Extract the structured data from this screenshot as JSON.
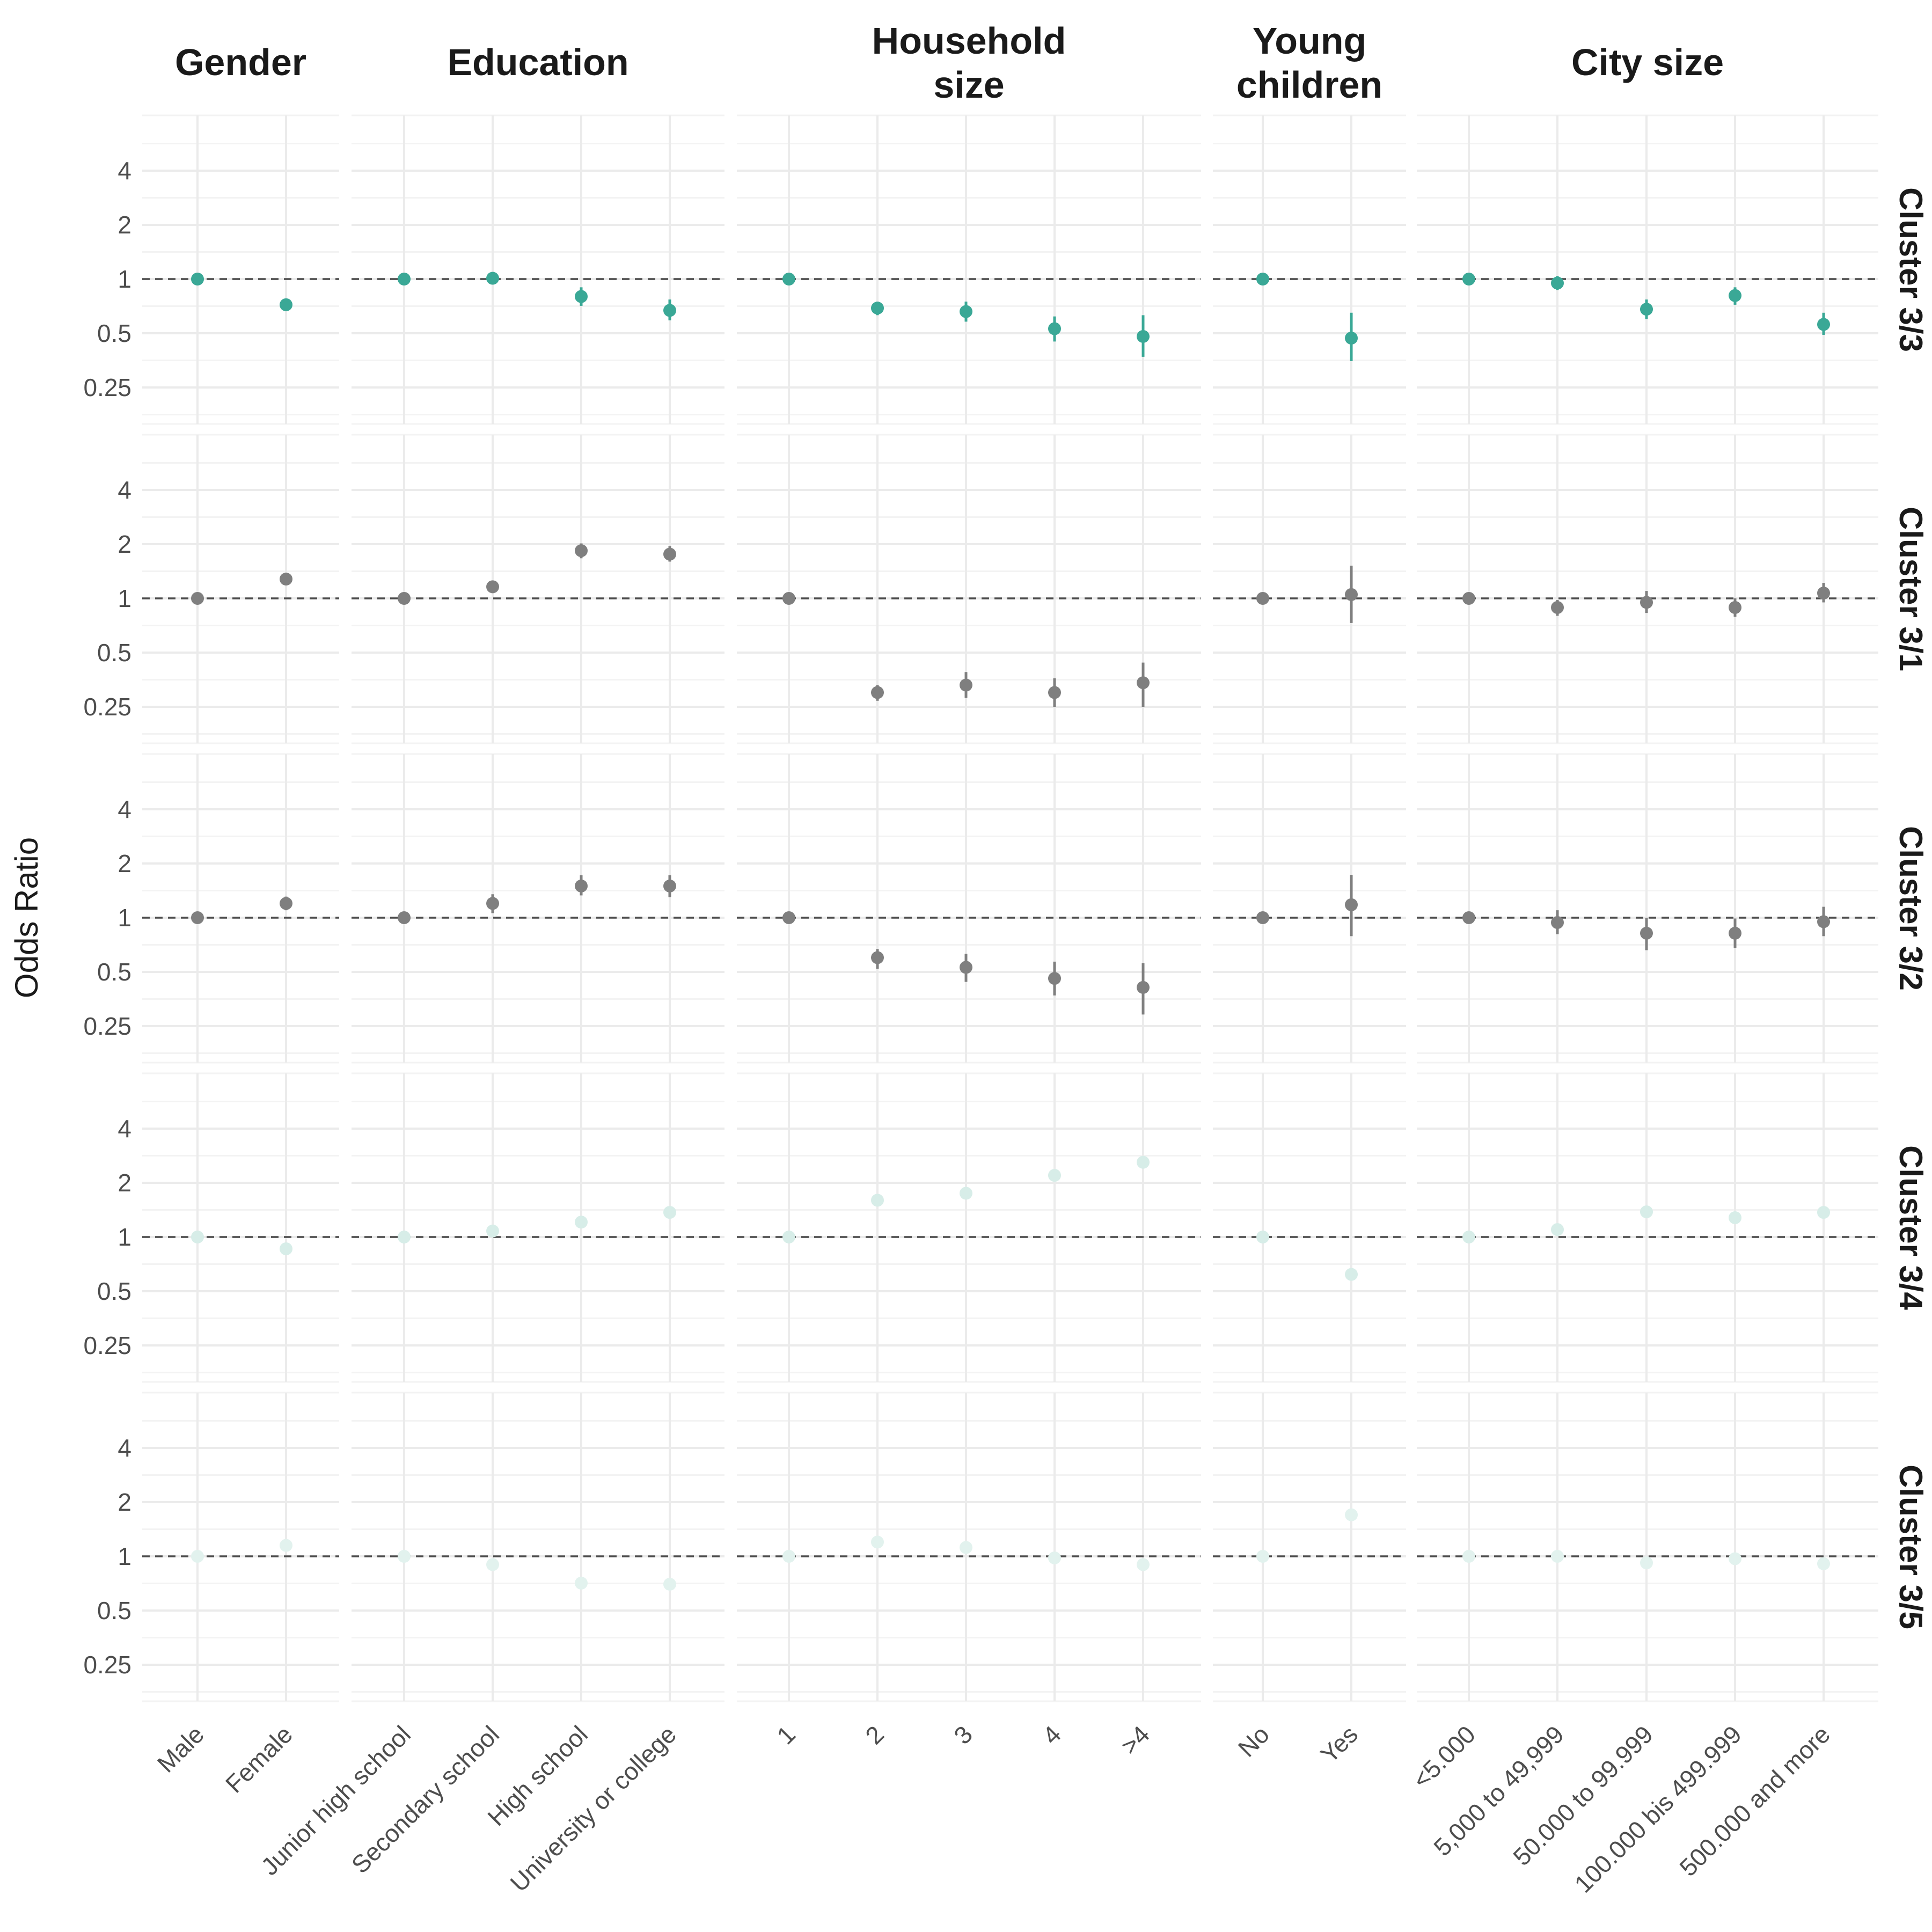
{
  "chart_data": {
    "type": "scatter",
    "ylabel": "Odds Ratio",
    "yscale": "log2",
    "yticks": [
      "0.25",
      "0.5",
      "1",
      "2",
      "4"
    ],
    "ytick_values": [
      0.25,
      0.5,
      1,
      2,
      4
    ],
    "reference_line": 1,
    "grid": true,
    "columns": [
      {
        "title_lines": [
          "Gender"
        ],
        "categories": [
          "Male",
          "Female"
        ]
      },
      {
        "title_lines": [
          "Education"
        ],
        "categories": [
          "Junior high school",
          "Secondary school",
          "High school",
          "University or college"
        ]
      },
      {
        "title_lines": [
          "Household",
          "size"
        ],
        "categories": [
          "1",
          "2",
          "3",
          "4",
          ">4"
        ]
      },
      {
        "title_lines": [
          "Young",
          "children"
        ],
        "categories": [
          "No",
          "Yes"
        ]
      },
      {
        "title_lines": [
          "City size"
        ],
        "categories": [
          "<5.000",
          "5,000 to 49,999",
          "50.000 to 99.999",
          "100.000 bis 499.999",
          "500.000 and more"
        ]
      }
    ],
    "rows": [
      {
        "title": "Cluster 3/3",
        "color": "#3aa896",
        "values": [
          [
            1.0,
            0.72
          ],
          [
            1.0,
            1.01,
            0.8,
            0.67
          ],
          [
            1.0,
            0.69,
            0.66,
            0.53,
            0.48
          ],
          [
            1.0,
            0.47
          ],
          [
            1.0,
            0.95,
            0.68,
            0.81,
            0.56
          ]
        ],
        "ci_low": [
          [
            null,
            null
          ],
          [
            null,
            0.96,
            0.71,
            0.59
          ],
          [
            null,
            0.63,
            0.58,
            0.45,
            0.37
          ],
          [
            null,
            0.35
          ],
          [
            null,
            0.87,
            0.6,
            0.72,
            0.49
          ]
        ],
        "ci_high": [
          [
            null,
            null
          ],
          [
            null,
            1.06,
            0.9,
            0.77
          ],
          [
            null,
            0.75,
            0.75,
            0.62,
            0.63
          ],
          [
            null,
            0.65
          ],
          [
            null,
            1.04,
            0.77,
            0.9,
            0.65
          ]
        ]
      },
      {
        "title": "Cluster 3/1",
        "color": "#7f7f7f",
        "values": [
          [
            1.0,
            1.28
          ],
          [
            1.0,
            1.16,
            1.84,
            1.76
          ],
          [
            1.0,
            0.3,
            0.33,
            0.3,
            0.34
          ],
          [
            1.0,
            1.05
          ],
          [
            1.0,
            0.89,
            0.95,
            0.89,
            1.07
          ]
        ],
        "ci_low": [
          [
            null,
            null
          ],
          [
            null,
            1.07,
            1.67,
            1.6
          ],
          [
            null,
            0.27,
            0.28,
            0.25,
            0.25
          ],
          [
            null,
            0.73
          ],
          [
            null,
            0.8,
            0.83,
            0.79,
            0.95
          ]
        ],
        "ci_high": [
          [
            null,
            null
          ],
          [
            null,
            1.25,
            2.02,
            1.95
          ],
          [
            null,
            0.33,
            0.39,
            0.36,
            0.44
          ],
          [
            null,
            1.52
          ],
          [
            null,
            0.98,
            1.1,
            1.0,
            1.22
          ]
        ]
      },
      {
        "title": "Cluster 3/2",
        "color": "#7f7f7f",
        "values": [
          [
            1.0,
            1.2
          ],
          [
            1.0,
            1.2,
            1.5,
            1.5
          ],
          [
            1.0,
            0.6,
            0.53,
            0.46,
            0.41
          ],
          [
            1.0,
            1.18
          ],
          [
            1.0,
            0.94,
            0.82,
            0.82,
            0.95
          ]
        ],
        "ci_low": [
          [
            null,
            1.1
          ],
          [
            null,
            1.06,
            1.33,
            1.3
          ],
          [
            null,
            0.52,
            0.44,
            0.37,
            0.29
          ],
          [
            null,
            0.79
          ],
          [
            null,
            0.81,
            0.66,
            0.68,
            0.79
          ]
        ],
        "ci_high": [
          [
            null,
            1.31
          ],
          [
            null,
            1.35,
            1.72,
            1.72
          ],
          [
            null,
            0.67,
            0.63,
            0.57,
            0.56
          ],
          [
            null,
            1.73
          ],
          [
            null,
            1.1,
            1.0,
            0.99,
            1.15
          ]
        ]
      },
      {
        "title": "Cluster 3/4",
        "color": "#d7ede8",
        "values": [
          [
            1.0,
            0.86
          ],
          [
            1.0,
            1.08,
            1.21,
            1.37
          ],
          [
            1.0,
            1.6,
            1.75,
            2.2,
            2.6
          ],
          [
            1.0,
            0.62
          ],
          [
            1.0,
            1.1,
            1.38,
            1.28,
            1.37
          ]
        ]
      },
      {
        "title": "Cluster 3/5",
        "color": "#e2f2ee",
        "values": [
          [
            1.0,
            1.15
          ],
          [
            1.0,
            0.9,
            0.71,
            0.7
          ],
          [
            1.0,
            1.2,
            1.12,
            0.98,
            0.9
          ],
          [
            1.0,
            1.7
          ],
          [
            1.0,
            1.0,
            0.92,
            0.97,
            0.91
          ]
        ]
      }
    ]
  }
}
